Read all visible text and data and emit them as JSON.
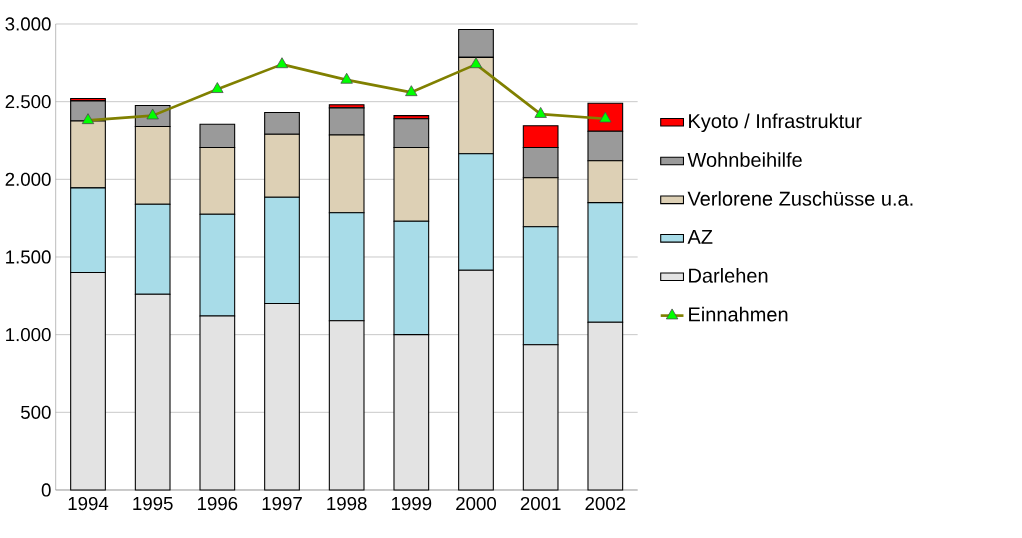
{
  "chart_data": {
    "type": "bar",
    "stacked": true,
    "categories": [
      "1994",
      "1995",
      "1996",
      "1997",
      "1998",
      "1999",
      "2000",
      "2001",
      "2002"
    ],
    "series": [
      {
        "name": "Darlehen",
        "color": "#e3e3e3",
        "values": [
          1400,
          1260,
          1120,
          1200,
          1090,
          1000,
          1415,
          935,
          1080
        ]
      },
      {
        "name": "AZ",
        "color": "#a8dce8",
        "values": [
          545,
          580,
          655,
          685,
          695,
          730,
          750,
          760,
          770
        ]
      },
      {
        "name": "Verlorene Zuschüsse u.a.",
        "color": "#ddd0b5",
        "values": [
          430,
          500,
          430,
          405,
          500,
          475,
          620,
          315,
          270
        ]
      },
      {
        "name": "Wohnbeihilfe",
        "color": "#9a9a9a",
        "values": [
          130,
          135,
          150,
          140,
          175,
          185,
          180,
          195,
          190
        ]
      },
      {
        "name": "Kyoto / Infrastruktur",
        "color": "#ff0000",
        "values": [
          15,
          0,
          0,
          0,
          20,
          20,
          0,
          140,
          180
        ]
      },
      {
        "name": "Einnahmen",
        "type": "line",
        "marker": "triangle",
        "color": "#808000",
        "values": [
          2380,
          2410,
          2580,
          2740,
          2640,
          2560,
          2740,
          2420,
          2390
        ]
      }
    ],
    "ylim": [
      0,
      3000
    ],
    "yticks": [
      0,
      500,
      {
        "value": 1000,
        "label": "1.000"
      },
      {
        "value": 1500,
        "label": "1.500"
      },
      {
        "value": 2000,
        "label": "2.000"
      },
      {
        "value": 2500,
        "label": "2.500"
      },
      {
        "value": 3000,
        "label": "3.000"
      }
    ],
    "grid": "y",
    "legend": "right"
  }
}
